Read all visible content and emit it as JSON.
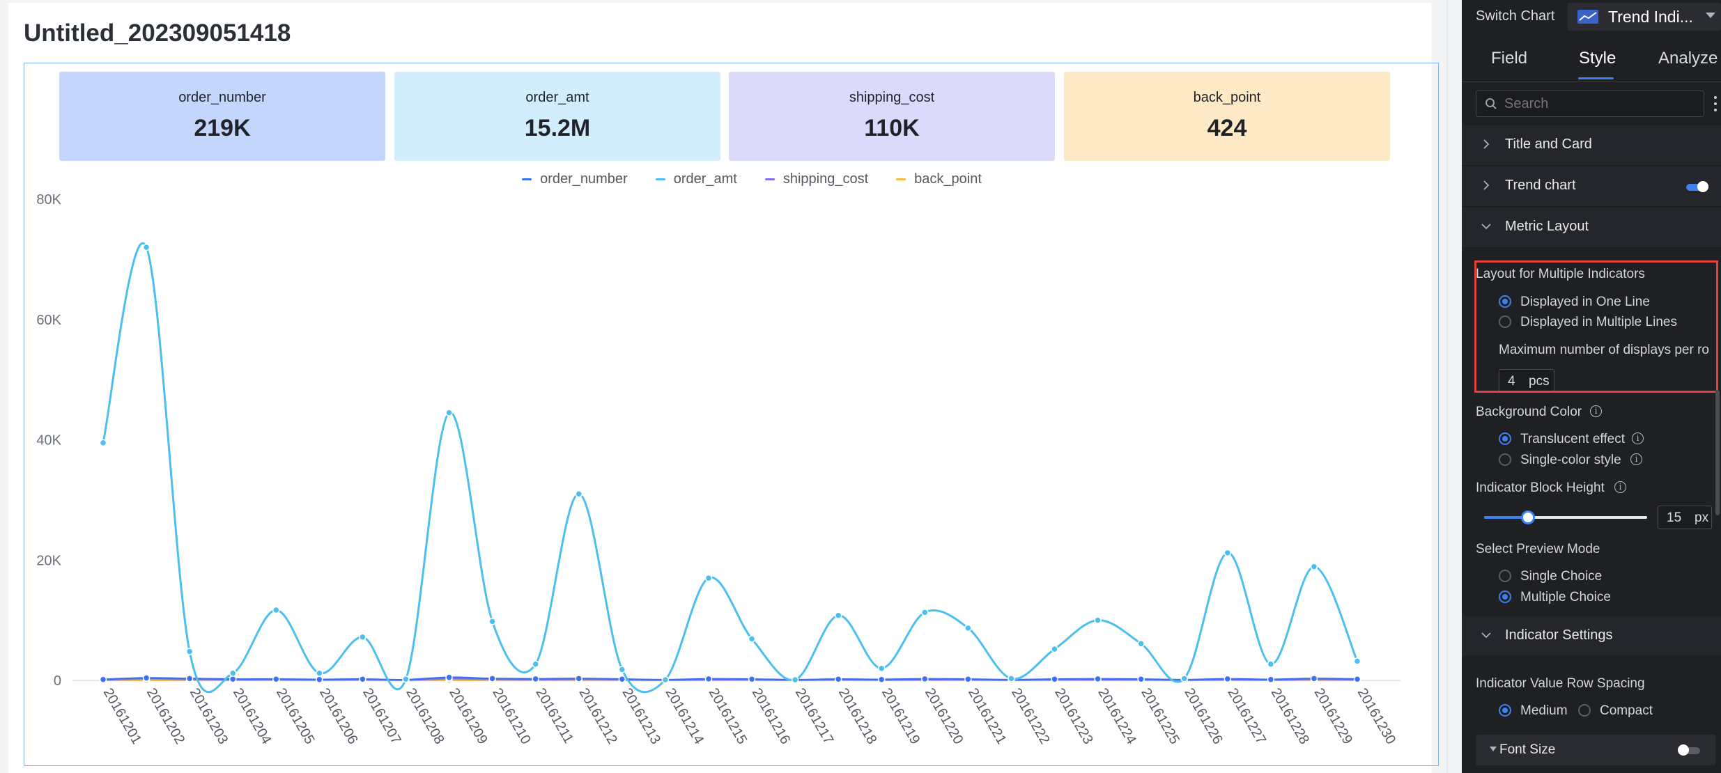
{
  "page_title": "Untitled_202309051418",
  "kpis": [
    {
      "label": "order_number",
      "value": "219K",
      "bg": "#c4d6fc"
    },
    {
      "label": "order_amt",
      "value": "15.2M",
      "bg": "#d2eefc"
    },
    {
      "label": "shipping_cost",
      "value": "110K",
      "bg": "#dcdafa"
    },
    {
      "label": "back_point",
      "value": "424",
      "bg": "#fde9c6"
    }
  ],
  "chart_data": {
    "type": "line",
    "title": "",
    "xlabel": "",
    "ylabel": "",
    "ylim": [
      0,
      80000
    ],
    "y_ticks": [
      "0",
      "20K",
      "40K",
      "60K",
      "80K"
    ],
    "y_tick_values": [
      0,
      20000,
      40000,
      60000,
      80000
    ],
    "categories": [
      "20161201",
      "20161202",
      "20161203",
      "20161204",
      "20161205",
      "20161206",
      "20161207",
      "20161208",
      "20161209",
      "20161210",
      "20161211",
      "20161212",
      "20161213",
      "20161214",
      "20161215",
      "20161216",
      "20161217",
      "20161218",
      "20161219",
      "20161220",
      "20161221",
      "20161222",
      "20161223",
      "20161224",
      "20161225",
      "20161226",
      "20161227",
      "20161228",
      "20161229",
      "20161230"
    ],
    "legend_position": "top-center",
    "grid": false,
    "series": [
      {
        "name": "order_number",
        "color": "#3d6ff2",
        "values": [
          150,
          400,
          300,
          200,
          200,
          150,
          200,
          100,
          500,
          300,
          250,
          300,
          200,
          100,
          250,
          200,
          100,
          200,
          150,
          250,
          200,
          100,
          200,
          250,
          200,
          100,
          250,
          150,
          300,
          200
        ]
      },
      {
        "name": "order_amt",
        "color": "#4dbfee",
        "values": [
          39500,
          72000,
          4800,
          1200,
          11700,
          1200,
          7200,
          200,
          44500,
          9800,
          2700,
          31000,
          1800,
          100,
          17000,
          6900,
          100,
          10800,
          2000,
          11300,
          8700,
          300,
          5200,
          10000,
          6100,
          300,
          21200,
          2700,
          18900,
          3200
        ]
      },
      {
        "name": "shipping_cost",
        "color": "#7b6ff0",
        "values": [
          100,
          300,
          200,
          150,
          150,
          100,
          150,
          80,
          300,
          200,
          150,
          200,
          150,
          80,
          150,
          150,
          80,
          150,
          100,
          150,
          150,
          80,
          150,
          150,
          150,
          80,
          150,
          100,
          200,
          150
        ]
      },
      {
        "name": "back_point",
        "color": "#f6b93b",
        "values": [
          10,
          20,
          15,
          10,
          12,
          8,
          10,
          5,
          20,
          15,
          10,
          15,
          10,
          5,
          12,
          10,
          5,
          10,
          8,
          12,
          10,
          5,
          10,
          12,
          10,
          5,
          12,
          8,
          15,
          10
        ]
      }
    ]
  },
  "panel": {
    "switch_chart_label": "Switch Chart",
    "chart_type_label": "Trend Indi...",
    "tabs": [
      "Field",
      "Style",
      "Analyze"
    ],
    "active_tab": "Style",
    "search_placeholder": "Search",
    "sections": {
      "title_card": "Title and Card",
      "trend_chart": "Trend chart",
      "metric_layout": "Metric Layout",
      "indicator_settings": "Indicator Settings"
    },
    "layout_multiple_label": "Layout for Multiple Indicators",
    "layout_one_line": "Displayed in One Line",
    "layout_multi_lines": "Displayed in Multiple Lines",
    "max_per_row_label": "Maximum number of displays per ro",
    "max_per_row_value": "4",
    "max_per_row_unit": "pcs",
    "background_color_label": "Background Color",
    "bg_translucent": "Translucent effect",
    "bg_single_color": "Single-color style",
    "block_height_label": "Indicator Block Height",
    "block_height_value": "15",
    "block_height_unit": "px",
    "block_height_fraction": 0.27,
    "preview_mode_label": "Select Preview Mode",
    "preview_single": "Single Choice",
    "preview_multiple": "Multiple Choice",
    "row_spacing_label": "Indicator Value Row Spacing",
    "spacing_medium": "Medium",
    "spacing_compact": "Compact",
    "font_size_label": "Font Size",
    "accent_color": "#3d80f0",
    "highlight_color": "#e0433a"
  }
}
